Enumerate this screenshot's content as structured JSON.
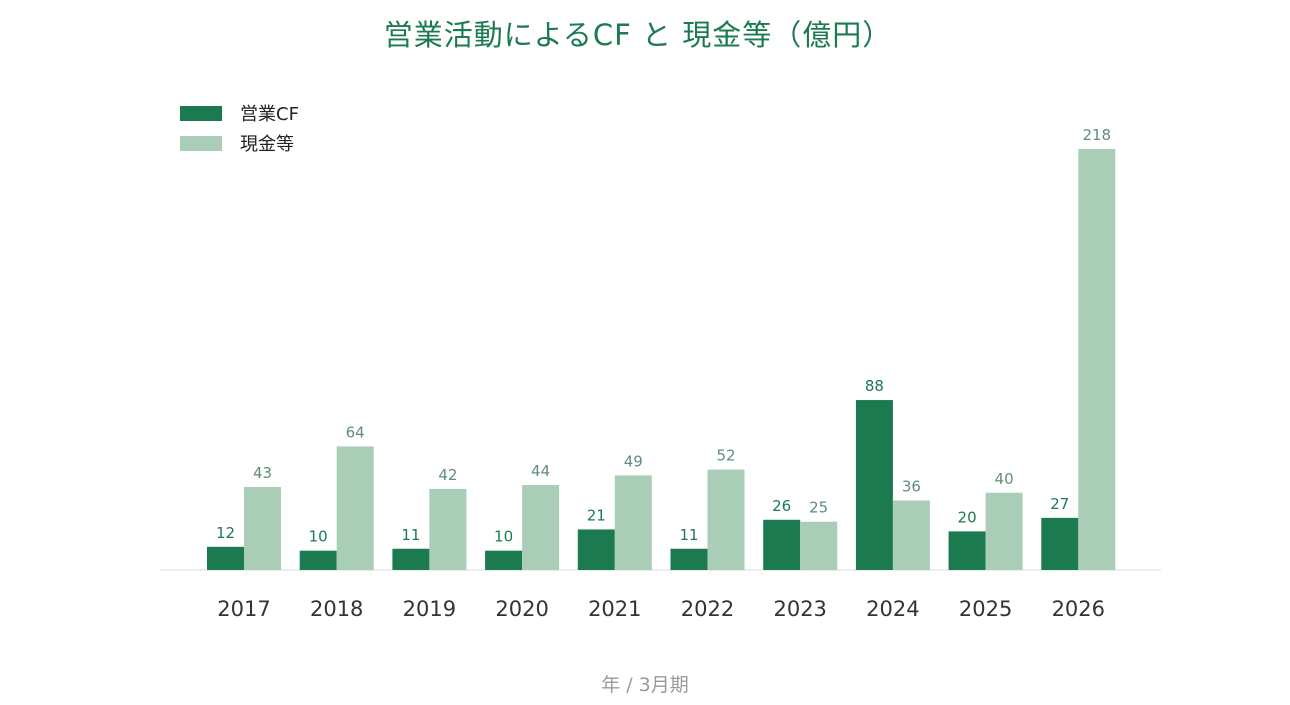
{
  "chart_data": {
    "type": "bar",
    "title": "営業活動によるCF と 現金等（億円）",
    "xlabel": "年 / 3月期",
    "ylabel": "",
    "categories": [
      "2017",
      "2018",
      "2019",
      "2020",
      "2021",
      "2022",
      "2023",
      "2024",
      "2025",
      "2026"
    ],
    "series": [
      {
        "name": "営業CF",
        "values": [
          12,
          10,
          11,
          10,
          21,
          11,
          26,
          88,
          20,
          27
        ],
        "color": "#1b7a50",
        "label_color": "#1b7a50"
      },
      {
        "name": "現金等",
        "values": [
          43,
          64,
          42,
          44,
          49,
          52,
          25,
          36,
          40,
          218
        ],
        "color": "#a9cdb7",
        "label_color": "#5f8f76"
      }
    ],
    "ylim": [
      0,
      218
    ],
    "grid": false,
    "legend_position": "top-left"
  }
}
